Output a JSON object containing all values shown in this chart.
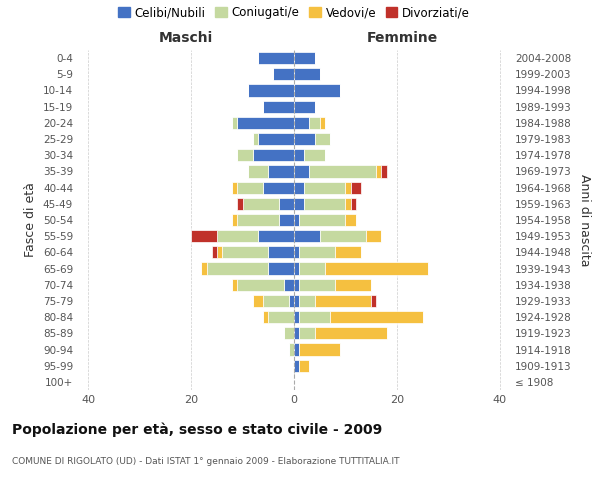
{
  "age_groups": [
    "100+",
    "95-99",
    "90-94",
    "85-89",
    "80-84",
    "75-79",
    "70-74",
    "65-69",
    "60-64",
    "55-59",
    "50-54",
    "45-49",
    "40-44",
    "35-39",
    "30-34",
    "25-29",
    "20-24",
    "15-19",
    "10-14",
    "5-9",
    "0-4"
  ],
  "birth_years": [
    "≤ 1908",
    "1909-1913",
    "1914-1918",
    "1919-1923",
    "1924-1928",
    "1929-1933",
    "1934-1938",
    "1939-1943",
    "1944-1948",
    "1949-1953",
    "1954-1958",
    "1959-1963",
    "1964-1968",
    "1969-1973",
    "1974-1978",
    "1979-1983",
    "1984-1988",
    "1989-1993",
    "1994-1998",
    "1999-2003",
    "2004-2008"
  ],
  "males_celibi": [
    0,
    0,
    0,
    0,
    0,
    1,
    2,
    5,
    5,
    7,
    3,
    3,
    6,
    5,
    8,
    7,
    11,
    6,
    9,
    4,
    7
  ],
  "males_coniugati": [
    0,
    0,
    1,
    2,
    5,
    5,
    9,
    12,
    9,
    8,
    8,
    7,
    5,
    4,
    3,
    1,
    1,
    0,
    0,
    0,
    0
  ],
  "males_vedovi": [
    0,
    0,
    0,
    0,
    1,
    2,
    1,
    1,
    1,
    0,
    1,
    0,
    1,
    0,
    0,
    0,
    0,
    0,
    0,
    0,
    0
  ],
  "males_divorziati": [
    0,
    0,
    0,
    0,
    0,
    0,
    0,
    0,
    1,
    5,
    0,
    1,
    0,
    0,
    0,
    0,
    0,
    0,
    0,
    0,
    0
  ],
  "females_nubili": [
    0,
    1,
    1,
    1,
    1,
    1,
    1,
    1,
    1,
    5,
    1,
    2,
    2,
    3,
    2,
    4,
    3,
    4,
    9,
    5,
    4
  ],
  "females_coniugate": [
    0,
    0,
    0,
    3,
    6,
    3,
    7,
    5,
    7,
    9,
    9,
    8,
    8,
    13,
    4,
    3,
    2,
    0,
    0,
    0,
    0
  ],
  "females_vedove": [
    0,
    2,
    8,
    14,
    18,
    11,
    7,
    20,
    5,
    3,
    2,
    1,
    1,
    1,
    0,
    0,
    1,
    0,
    0,
    0,
    0
  ],
  "females_divorziate": [
    0,
    0,
    0,
    0,
    0,
    1,
    0,
    0,
    0,
    0,
    0,
    1,
    2,
    1,
    0,
    0,
    0,
    0,
    0,
    0,
    0
  ],
  "color_celibi": "#4472c4",
  "color_coniugati": "#c5d9a0",
  "color_vedovi": "#f5c040",
  "color_divorziati": "#c0312a",
  "title": "Popolazione per età, sesso e stato civile - 2009",
  "subtitle": "COMUNE DI RIGOLATO (UD) - Dati ISTAT 1° gennaio 2009 - Elaborazione TUTTITALIA.IT",
  "label_maschi": "Maschi",
  "label_femmine": "Femmine",
  "ylabel_left": "Fasce di età",
  "ylabel_right": "Anni di nascita",
  "legend_labels": [
    "Celibi/Nubili",
    "Coniugati/e",
    "Vedovi/e",
    "Divorziati/e"
  ],
  "xlim": 42,
  "bar_height": 0.75,
  "bg_color": "#ffffff",
  "grid_color": "#cccccc"
}
